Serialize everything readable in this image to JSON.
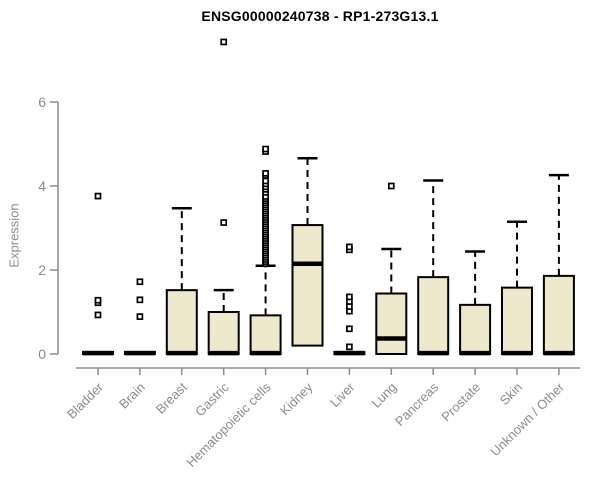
{
  "title": "ENSG00000240738 - RP1-273G13.1",
  "chart_data": {
    "type": "boxplot",
    "title": "ENSG00000240738 - RP1-273G13.1",
    "ylabel": "Expression",
    "xlabel": "",
    "ylim": [
      0,
      6
    ],
    "yticks": [
      0,
      2,
      4,
      6
    ],
    "grid": false,
    "legend": "none",
    "colors": {
      "box_fill": "#EEE8CD",
      "box_stroke": "#000000",
      "median": "#000000",
      "axis": "#8C8C8C",
      "tick_label": "#8C8C8C",
      "title": "#000000",
      "background": "#FFFFFF"
    },
    "categories": [
      "Bladder",
      "Brain",
      "Breast",
      "Gastric",
      "Hematopoietic cells",
      "Kidney",
      "Liver",
      "Lung",
      "Pancreas",
      "Prostate",
      "Skin",
      "Unknown / Other"
    ],
    "boxes": [
      {
        "category": "Bladder",
        "q1": 0,
        "median": 0.02,
        "q3": 0.05,
        "whisker_low": 0,
        "whisker_high": 0.05,
        "outliers": [
          0.93,
          1.22,
          1.28,
          3.76
        ]
      },
      {
        "category": "Brain",
        "q1": 0,
        "median": 0.02,
        "q3": 0.05,
        "whisker_low": 0,
        "whisker_high": 0.05,
        "outliers": [
          0.89,
          1.29,
          1.72
        ]
      },
      {
        "category": "Breast",
        "q1": 0,
        "median": 0.02,
        "q3": 1.52,
        "whisker_low": 0,
        "whisker_high": 3.47,
        "outliers": []
      },
      {
        "category": "Gastric",
        "q1": 0,
        "median": 0.02,
        "q3": 1.0,
        "whisker_low": 0,
        "whisker_high": 1.52,
        "outliers": [
          3.13,
          7.43
        ]
      },
      {
        "category": "Hematopoietic cells",
        "q1": 0,
        "median": 0.02,
        "q3": 0.92,
        "whisker_low": 0,
        "whisker_high": 2.1,
        "outliers": [
          2.15,
          2.2,
          2.25,
          2.3,
          2.35,
          2.4,
          2.45,
          2.5,
          2.55,
          2.6,
          2.65,
          2.7,
          2.75,
          2.8,
          2.85,
          2.9,
          2.95,
          3.0,
          3.05,
          3.1,
          3.15,
          3.2,
          3.25,
          3.3,
          3.35,
          3.4,
          3.45,
          3.5,
          3.55,
          3.6,
          3.65,
          3.7,
          3.75,
          3.85,
          3.92,
          3.98,
          4.05,
          4.12,
          4.25,
          4.3,
          4.82,
          4.88
        ]
      },
      {
        "category": "Kidney",
        "q1": 0.2,
        "median": 2.15,
        "q3": 3.07,
        "whisker_low": 0.2,
        "whisker_high": 4.66,
        "outliers": []
      },
      {
        "category": "Liver",
        "q1": 0,
        "median": 0.02,
        "q3": 0.05,
        "whisker_low": 0,
        "whisker_high": 0.05,
        "outliers": [
          0.17,
          0.6,
          1.02,
          1.13,
          1.25,
          1.36,
          2.48,
          2.55
        ]
      },
      {
        "category": "Lung",
        "q1": 0,
        "median": 0.37,
        "q3": 1.44,
        "whisker_low": 0,
        "whisker_high": 2.5,
        "outliers": [
          4.0
        ]
      },
      {
        "category": "Pancreas",
        "q1": 0,
        "median": 0.02,
        "q3": 1.83,
        "whisker_low": 0,
        "whisker_high": 4.13,
        "outliers": []
      },
      {
        "category": "Prostate",
        "q1": 0,
        "median": 0.02,
        "q3": 1.17,
        "whisker_low": 0,
        "whisker_high": 2.44,
        "outliers": []
      },
      {
        "category": "Skin",
        "q1": 0,
        "median": 0.02,
        "q3": 1.58,
        "whisker_low": 0,
        "whisker_high": 3.15,
        "outliers": []
      },
      {
        "category": "Unknown / Other",
        "q1": 0,
        "median": 0.02,
        "q3": 1.86,
        "whisker_low": 0,
        "whisker_high": 4.26,
        "outliers": []
      }
    ]
  }
}
